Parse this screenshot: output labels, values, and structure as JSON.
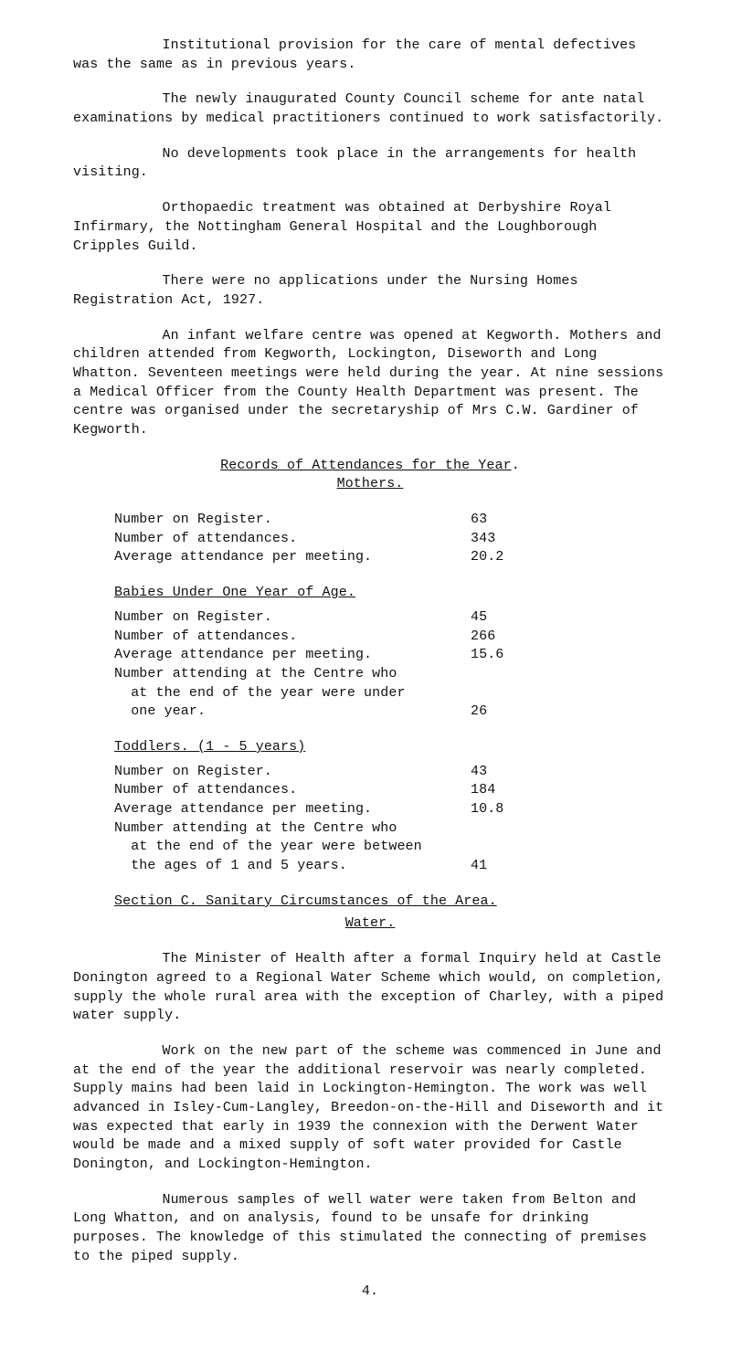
{
  "p1": "Institutional provision for the care of mental defectives was the same as in previous years.",
  "p2": "The newly inaugurated County Council scheme for ante natal examinations by medical practitioners continued to work satisfactorily.",
  "p3": "No developments took place in the arrangements for health visiting.",
  "p4": "Orthopaedic treatment was obtained at Derbyshire Royal Infirmary, the Nottingham General Hospital and the Loughborough Cripples Guild.",
  "p5": "There were no applications under the Nursing Homes Registration Act, 1927.",
  "p6": "An infant welfare centre was opened at Kegworth.  Mothers and children attended from Kegworth, Lockington, Diseworth and Long Whatton.  Seventeen meetings were held during the year.  At nine sessions a Medical Officer from the County Health Department was present.  The centre was organised under the secretaryship of Mrs C.W. Gardiner of Kegworth.",
  "heading_records": "Records of Attendances for the Year",
  "heading_mothers": "Mothers.",
  "mothers": {
    "rows": [
      {
        "label": "Number on Register.",
        "val": "63"
      },
      {
        "label": "Number of attendances.",
        "val": "343"
      },
      {
        "label": "Average attendance per meeting.",
        "val": "20.2"
      }
    ]
  },
  "heading_babies": "Babies Under One Year of Age.",
  "babies": {
    "rows": [
      {
        "label": "Number on Register.",
        "val": "45"
      },
      {
        "label": "Number of attendances.",
        "val": "266"
      },
      {
        "label": "Average attendance per meeting.",
        "val": "15.6"
      }
    ],
    "multi": {
      "l1": "Number attending at the Centre who",
      "l2": "  at the end of the year were under",
      "l3": "  one year.",
      "val": "26"
    }
  },
  "heading_toddlers": "Toddlers. (1 - 5 years)",
  "toddlers": {
    "rows": [
      {
        "label": "Number on Register.",
        "val": "43"
      },
      {
        "label": "Number of attendances.",
        "val": "184"
      },
      {
        "label": "Average attendance per meeting.",
        "val": "10.8"
      }
    ],
    "multi": {
      "l1": "Number attending at the Centre who",
      "l2": "  at the end of the year were between",
      "l3": "  the ages of 1 and 5 years.",
      "val": "41"
    }
  },
  "section_c_label": "Section C.  Sanitary Circumstances of the Area.",
  "water_label": "Water.",
  "p7": "The Minister of Health after a formal Inquiry held at Castle Donington agreed to a Regional Water Scheme which would, on completion, supply the whole rural area with the exception of Charley, with a piped water supply.",
  "p8": "Work on the new part of the scheme was commenced in June and at the end of the year the additional reservoir was nearly completed.  Supply mains had been laid in Lockington-Hemington.  The work was well advanced in Isley-Cum-Langley, Breedon-on-the-Hill and Diseworth and it was expected that early in 1939 the connexion with the Derwent Water would be made and a mixed supply of soft water provided for Castle Donington, and Lockington-Hemington.",
  "p9": "Numerous samples of well water were taken from Belton and Long Whatton, and on analysis, found to be unsafe for drinking purposes.  The knowledge of this stimulated the connecting of premises to the piped supply.",
  "page_num": "4."
}
